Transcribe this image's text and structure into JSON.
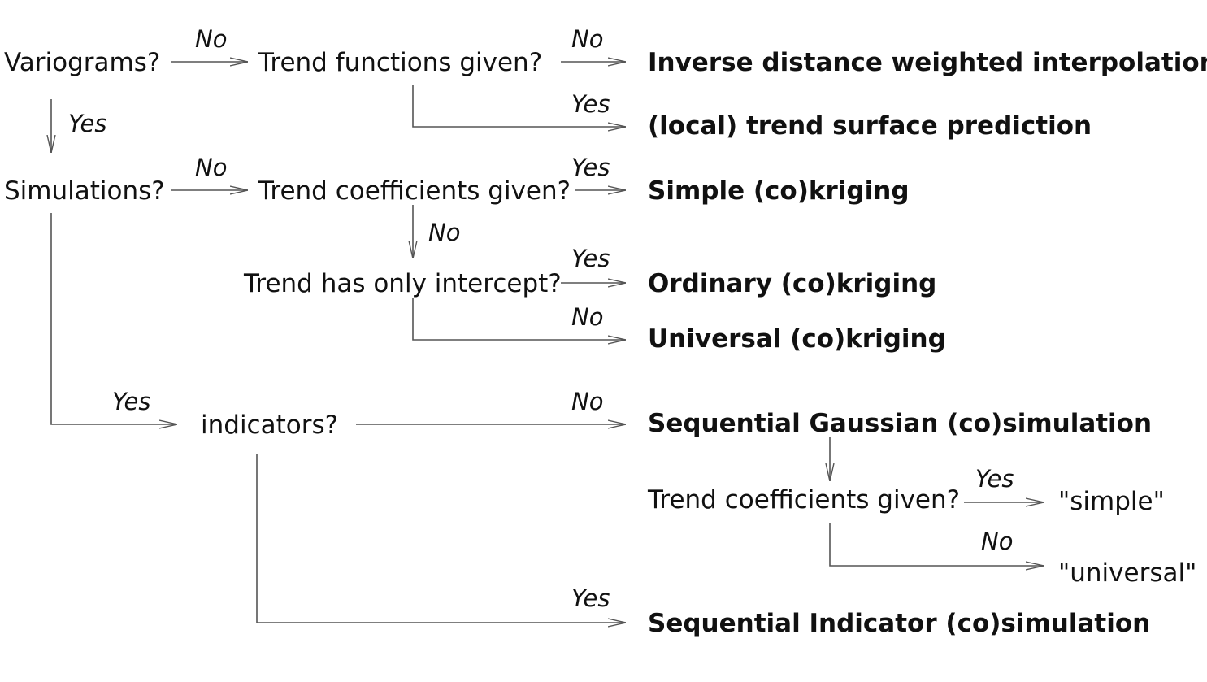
{
  "questions": {
    "variograms": "Variograms?",
    "trend_functions": "Trend functions given?",
    "simulations": "Simulations?",
    "trend_coefficients": "Trend coefficients given?",
    "trend_intercept": "Trend has only intercept?",
    "indicators": "indicators?",
    "trend_coefficients_sim": "Trend coefficients given?"
  },
  "results": {
    "idw": "Inverse distance weighted interpolation",
    "local_trend": "(local) trend surface prediction",
    "simple_kriging": "Simple (co)kriging",
    "ordinary_kriging": "Ordinary (co)kriging",
    "universal_kriging": "Universal (co)kriging",
    "sgs": "Sequential Gaussian (co)simulation",
    "simple": "\"simple\"",
    "universal": "\"universal\"",
    "sis": "Sequential Indicator (co)simulation"
  },
  "edge_labels": {
    "yes": "Yes",
    "no": "No"
  },
  "colors": {
    "line": "#555555",
    "text": "#111111"
  }
}
